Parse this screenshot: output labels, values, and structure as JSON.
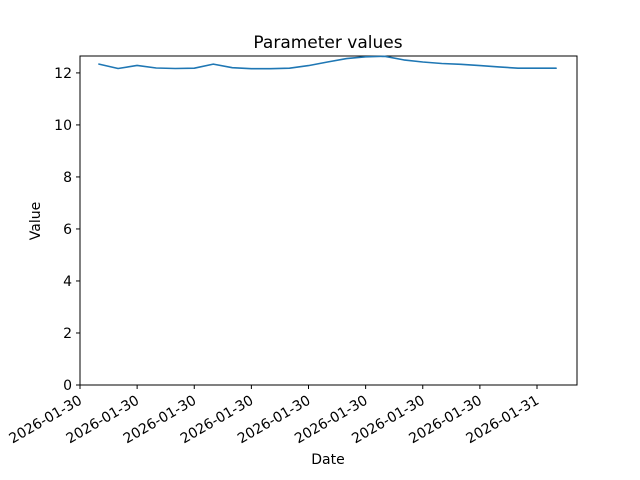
{
  "chart_data": {
    "type": "line",
    "title": "Parameter values",
    "xlabel": "Date",
    "ylabel": "Value",
    "grid": false,
    "legend": "none",
    "background_color": "#ffffff",
    "axis_color": "#000000",
    "x_tick_labels": [
      "2026-01-30",
      "2026-01-30",
      "2026-01-30",
      "2026-01-30",
      "2026-01-30",
      "2026-01-30",
      "2026-01-30",
      "2026-01-30",
      "2026-01-31"
    ],
    "x_tick_rotation_deg": 30,
    "x_tick_positions_hours": [
      0,
      3,
      6,
      9,
      12,
      15,
      18,
      21,
      24
    ],
    "xlim_hours": [
      0,
      26.1
    ],
    "y_ticks": [
      0,
      2,
      4,
      6,
      8,
      10,
      12
    ],
    "ylim": [
      0,
      12.65
    ],
    "series": [
      {
        "name": "parameter-values",
        "color": "#1f77b4",
        "x_hours": [
          1,
          2,
          3,
          4,
          5,
          6,
          7,
          8,
          9,
          10,
          11,
          12,
          13,
          14,
          15,
          16,
          17,
          18,
          19,
          20,
          21,
          22,
          23,
          24,
          25
        ],
        "values": [
          12.34,
          12.17,
          12.29,
          12.19,
          12.17,
          12.18,
          12.34,
          12.2,
          12.16,
          12.16,
          12.18,
          12.28,
          12.42,
          12.55,
          12.62,
          12.64,
          12.5,
          12.42,
          12.36,
          12.33,
          12.28,
          12.23,
          12.18,
          12.18,
          12.18
        ]
      }
    ]
  }
}
